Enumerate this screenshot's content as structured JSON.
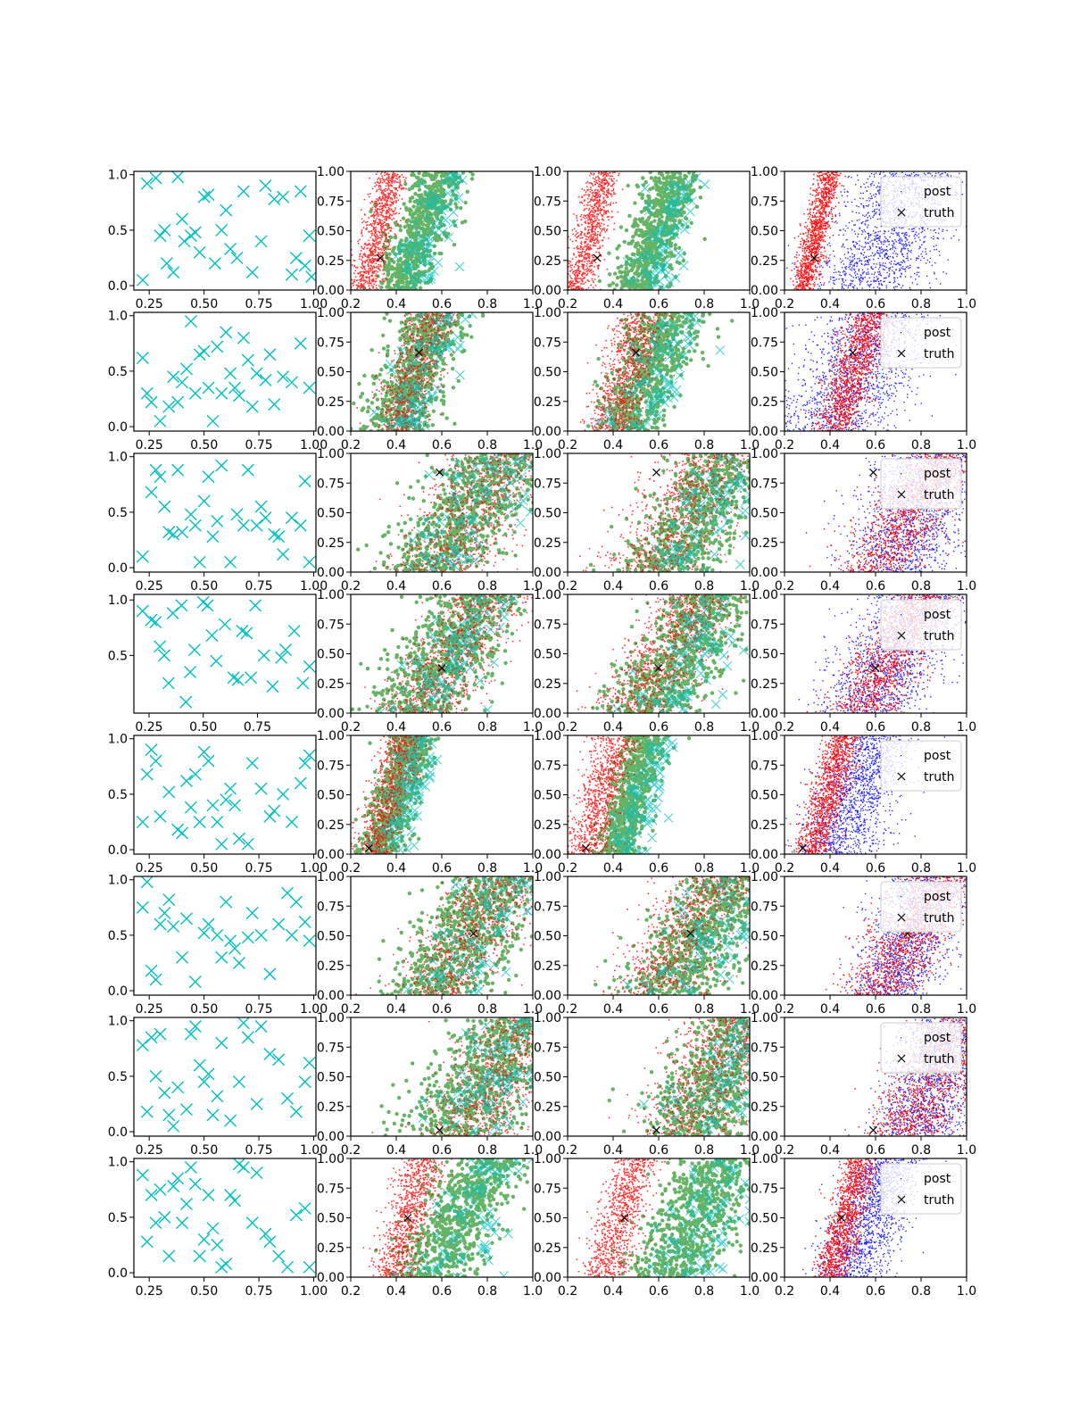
{
  "figure": {
    "rows": 8,
    "cols": 4
  },
  "colors": {
    "cyan": "#00bfbf",
    "red": "#ff0000",
    "green": "#008000",
    "blue": "#0000ff",
    "black": "#000000"
  },
  "icons": {
    "marker_x": "x-marker-icon",
    "marker_dot": "dot-marker-icon"
  },
  "legend": {
    "entries": [
      "post",
      "truth"
    ],
    "placement": "upper-right"
  },
  "chart_data": {
    "type": "scatter",
    "grid": false,
    "tick_sets": {
      "col0_y_full": [
        "0.0",
        "0.5",
        "1.0"
      ],
      "col0_y_short": [
        "0.5",
        "1.0"
      ],
      "col0_x_a": [
        "0.25",
        "0.50",
        "0.75",
        "1.00"
      ],
      "col0_x_b": [
        "0.25",
        "0.50",
        "0.75"
      ],
      "quarter_y": [
        "0.00",
        "0.25",
        "0.50",
        "0.75",
        "1.00"
      ],
      "x_tenths": [
        "0.2",
        "0.4",
        "0.6",
        "0.8",
        "1.0"
      ]
    },
    "rows": [
      {
        "truth": [
          0.33,
          0.27
        ],
        "points": [
          [
            0.22,
            0.05
          ],
          [
            0.24,
            0.92
          ],
          [
            0.28,
            0.97
          ],
          [
            0.3,
            0.45
          ],
          [
            0.32,
            0.5
          ],
          [
            0.33,
            0.2
          ],
          [
            0.36,
            0.12
          ],
          [
            0.38,
            0.98
          ],
          [
            0.4,
            0.6
          ],
          [
            0.41,
            0.4
          ],
          [
            0.44,
            0.45
          ],
          [
            0.46,
            0.48
          ],
          [
            0.48,
            0.3
          ],
          [
            0.5,
            0.8
          ],
          [
            0.52,
            0.82
          ],
          [
            0.55,
            0.2
          ],
          [
            0.58,
            0.5
          ],
          [
            0.6,
            0.68
          ],
          [
            0.62,
            0.33
          ],
          [
            0.65,
            0.25
          ],
          [
            0.68,
            0.85
          ],
          [
            0.72,
            0.12
          ],
          [
            0.76,
            0.4
          ],
          [
            0.78,
            0.9
          ],
          [
            0.82,
            0.78
          ],
          [
            0.86,
            0.8
          ],
          [
            0.9,
            0.1
          ],
          [
            0.92,
            0.25
          ],
          [
            0.94,
            0.85
          ],
          [
            0.96,
            0.18
          ],
          [
            0.98,
            0.45
          ],
          [
            0.99,
            0.08
          ]
        ]
      },
      {
        "truth": [
          0.5,
          0.66
        ],
        "points": [
          [
            0.22,
            0.62
          ],
          [
            0.24,
            0.3
          ],
          [
            0.26,
            0.22
          ],
          [
            0.3,
            0.05
          ],
          [
            0.34,
            0.18
          ],
          [
            0.36,
            0.45
          ],
          [
            0.38,
            0.22
          ],
          [
            0.4,
            0.4
          ],
          [
            0.42,
            0.52
          ],
          [
            0.44,
            0.95
          ],
          [
            0.46,
            0.3
          ],
          [
            0.48,
            0.65
          ],
          [
            0.5,
            0.68
          ],
          [
            0.52,
            0.35
          ],
          [
            0.54,
            0.05
          ],
          [
            0.56,
            0.72
          ],
          [
            0.58,
            0.3
          ],
          [
            0.6,
            0.85
          ],
          [
            0.62,
            0.48
          ],
          [
            0.64,
            0.35
          ],
          [
            0.66,
            0.28
          ],
          [
            0.68,
            0.8
          ],
          [
            0.7,
            0.6
          ],
          [
            0.72,
            0.18
          ],
          [
            0.74,
            0.48
          ],
          [
            0.78,
            0.42
          ],
          [
            0.8,
            0.65
          ],
          [
            0.82,
            0.2
          ],
          [
            0.86,
            0.45
          ],
          [
            0.9,
            0.4
          ],
          [
            0.94,
            0.75
          ],
          [
            0.98,
            0.35
          ]
        ]
      },
      {
        "truth": [
          0.59,
          0.84
        ],
        "points": [
          [
            0.22,
            0.1
          ],
          [
            0.26,
            0.68
          ],
          [
            0.28,
            0.88
          ],
          [
            0.3,
            0.82
          ],
          [
            0.32,
            0.55
          ],
          [
            0.34,
            0.32
          ],
          [
            0.36,
            0.3
          ],
          [
            0.38,
            0.88
          ],
          [
            0.4,
            0.32
          ],
          [
            0.44,
            0.48
          ],
          [
            0.46,
            0.38
          ],
          [
            0.48,
            0.05
          ],
          [
            0.5,
            0.6
          ],
          [
            0.52,
            0.82
          ],
          [
            0.54,
            0.28
          ],
          [
            0.56,
            0.42
          ],
          [
            0.58,
            0.92
          ],
          [
            0.62,
            0.05
          ],
          [
            0.65,
            0.48
          ],
          [
            0.68,
            0.38
          ],
          [
            0.7,
            0.88
          ],
          [
            0.74,
            0.38
          ],
          [
            0.76,
            0.55
          ],
          [
            0.78,
            0.45
          ],
          [
            0.82,
            0.3
          ],
          [
            0.84,
            0.28
          ],
          [
            0.86,
            0.12
          ],
          [
            0.9,
            0.45
          ],
          [
            0.94,
            0.38
          ],
          [
            0.96,
            0.78
          ],
          [
            0.98,
            0.05
          ]
        ]
      },
      {
        "truth": [
          0.6,
          0.38
        ],
        "points": [
          [
            0.22,
            0.9
          ],
          [
            0.26,
            0.82
          ],
          [
            0.28,
            0.8
          ],
          [
            0.3,
            0.58
          ],
          [
            0.32,
            0.5
          ],
          [
            0.34,
            0.25
          ],
          [
            0.36,
            0.88
          ],
          [
            0.4,
            0.95
          ],
          [
            0.42,
            0.08
          ],
          [
            0.44,
            0.35
          ],
          [
            0.46,
            0.55
          ],
          [
            0.5,
            0.98
          ],
          [
            0.52,
            0.95
          ],
          [
            0.54,
            0.68
          ],
          [
            0.56,
            0.45
          ],
          [
            0.6,
            0.78
          ],
          [
            0.64,
            0.3
          ],
          [
            0.66,
            0.28
          ],
          [
            0.68,
            0.72
          ],
          [
            0.7,
            0.7
          ],
          [
            0.72,
            0.3
          ],
          [
            0.74,
            0.95
          ],
          [
            0.78,
            0.5
          ],
          [
            0.82,
            0.22
          ],
          [
            0.86,
            0.48
          ],
          [
            0.88,
            0.55
          ],
          [
            0.92,
            0.72
          ],
          [
            0.96,
            0.25
          ],
          [
            0.99,
            0.4
          ]
        ]
      },
      {
        "truth": [
          0.28,
          0.05
        ],
        "points": [
          [
            0.22,
            0.25
          ],
          [
            0.24,
            0.68
          ],
          [
            0.26,
            0.9
          ],
          [
            0.28,
            0.8
          ],
          [
            0.3,
            0.3
          ],
          [
            0.34,
            0.52
          ],
          [
            0.38,
            0.18
          ],
          [
            0.4,
            0.15
          ],
          [
            0.42,
            0.62
          ],
          [
            0.44,
            0.38
          ],
          [
            0.46,
            0.68
          ],
          [
            0.48,
            0.25
          ],
          [
            0.5,
            0.88
          ],
          [
            0.52,
            0.8
          ],
          [
            0.54,
            0.4
          ],
          [
            0.56,
            0.25
          ],
          [
            0.58,
            0.05
          ],
          [
            0.6,
            0.45
          ],
          [
            0.62,
            0.55
          ],
          [
            0.64,
            0.4
          ],
          [
            0.66,
            0.1
          ],
          [
            0.7,
            0.05
          ],
          [
            0.72,
            0.78
          ],
          [
            0.76,
            0.55
          ],
          [
            0.8,
            0.3
          ],
          [
            0.82,
            0.35
          ],
          [
            0.86,
            0.5
          ],
          [
            0.9,
            0.25
          ],
          [
            0.94,
            0.6
          ],
          [
            0.96,
            0.78
          ],
          [
            0.98,
            0.85
          ]
        ]
      },
      {
        "truth": [
          0.74,
          0.52
        ],
        "points": [
          [
            0.22,
            0.75
          ],
          [
            0.24,
            0.98
          ],
          [
            0.26,
            0.18
          ],
          [
            0.28,
            0.1
          ],
          [
            0.3,
            0.6
          ],
          [
            0.32,
            0.7
          ],
          [
            0.34,
            0.82
          ],
          [
            0.36,
            0.58
          ],
          [
            0.4,
            0.3
          ],
          [
            0.42,
            0.65
          ],
          [
            0.46,
            0.08
          ],
          [
            0.5,
            0.52
          ],
          [
            0.52,
            0.6
          ],
          [
            0.56,
            0.5
          ],
          [
            0.58,
            0.3
          ],
          [
            0.6,
            0.8
          ],
          [
            0.62,
            0.45
          ],
          [
            0.64,
            0.38
          ],
          [
            0.66,
            0.25
          ],
          [
            0.7,
            0.48
          ],
          [
            0.72,
            0.7
          ],
          [
            0.76,
            0.5
          ],
          [
            0.8,
            0.15
          ],
          [
            0.84,
            0.6
          ],
          [
            0.88,
            0.88
          ],
          [
            0.9,
            0.5
          ],
          [
            0.92,
            0.8
          ],
          [
            0.96,
            0.62
          ],
          [
            0.98,
            0.45
          ]
        ]
      },
      {
        "truth": [
          0.59,
          0.05
        ],
        "points": [
          [
            0.22,
            0.78
          ],
          [
            0.24,
            0.18
          ],
          [
            0.26,
            0.85
          ],
          [
            0.28,
            0.5
          ],
          [
            0.3,
            0.88
          ],
          [
            0.32,
            0.35
          ],
          [
            0.34,
            0.15
          ],
          [
            0.36,
            0.05
          ],
          [
            0.38,
            0.4
          ],
          [
            0.42,
            0.2
          ],
          [
            0.44,
            0.88
          ],
          [
            0.46,
            0.95
          ],
          [
            0.48,
            0.6
          ],
          [
            0.5,
            0.45
          ],
          [
            0.52,
            0.52
          ],
          [
            0.54,
            0.15
          ],
          [
            0.56,
            0.32
          ],
          [
            0.58,
            0.8
          ],
          [
            0.62,
            0.1
          ],
          [
            0.66,
            0.45
          ],
          [
            0.68,
            0.98
          ],
          [
            0.7,
            0.85
          ],
          [
            0.74,
            0.25
          ],
          [
            0.76,
            0.95
          ],
          [
            0.8,
            0.7
          ],
          [
            0.84,
            0.65
          ],
          [
            0.88,
            0.3
          ],
          [
            0.92,
            0.18
          ],
          [
            0.96,
            0.45
          ],
          [
            0.98,
            0.62
          ]
        ]
      },
      {
        "truth": [
          0.45,
          0.5
        ],
        "points": [
          [
            0.22,
            0.88
          ],
          [
            0.24,
            0.28
          ],
          [
            0.26,
            0.7
          ],
          [
            0.28,
            0.45
          ],
          [
            0.3,
            0.75
          ],
          [
            0.32,
            0.5
          ],
          [
            0.34,
            0.15
          ],
          [
            0.36,
            0.78
          ],
          [
            0.38,
            0.85
          ],
          [
            0.4,
            0.45
          ],
          [
            0.42,
            0.62
          ],
          [
            0.44,
            0.95
          ],
          [
            0.46,
            0.8
          ],
          [
            0.48,
            0.15
          ],
          [
            0.5,
            0.3
          ],
          [
            0.52,
            0.7
          ],
          [
            0.54,
            0.4
          ],
          [
            0.56,
            0.25
          ],
          [
            0.58,
            0.05
          ],
          [
            0.6,
            0.08
          ],
          [
            0.62,
            0.7
          ],
          [
            0.64,
            0.65
          ],
          [
            0.66,
            0.98
          ],
          [
            0.68,
            0.95
          ],
          [
            0.72,
            0.45
          ],
          [
            0.74,
            0.9
          ],
          [
            0.78,
            0.35
          ],
          [
            0.8,
            0.28
          ],
          [
            0.84,
            0.15
          ],
          [
            0.88,
            0.05
          ],
          [
            0.92,
            0.52
          ],
          [
            0.96,
            0.58
          ],
          [
            0.98,
            0.05
          ]
        ]
      }
    ]
  }
}
